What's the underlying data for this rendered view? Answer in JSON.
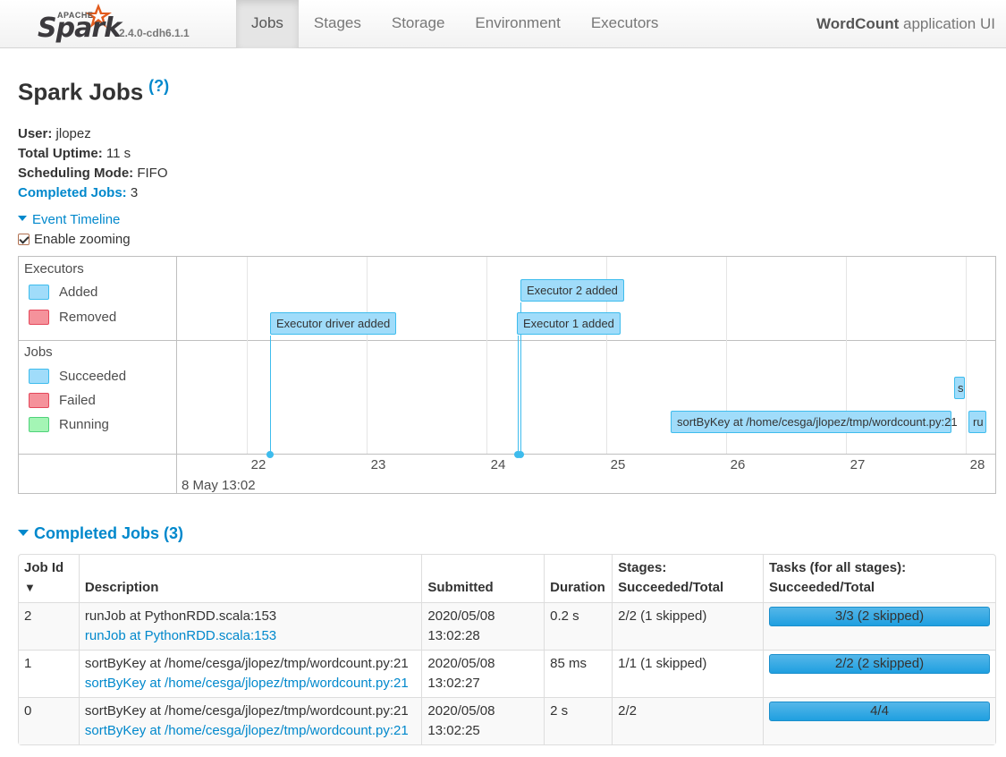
{
  "navbar": {
    "brand_word": "Spark",
    "brand_super": "APACHE",
    "version": "2.4.0-cdh6.1.1",
    "tabs": [
      {
        "label": "Jobs",
        "active": true
      },
      {
        "label": "Stages",
        "active": false
      },
      {
        "label": "Storage",
        "active": false
      },
      {
        "label": "Environment",
        "active": false
      },
      {
        "label": "Executors",
        "active": false
      }
    ],
    "app_name": "WordCount",
    "app_suffix": "application UI"
  },
  "page": {
    "title": "Spark Jobs",
    "help": "(?)"
  },
  "summary": {
    "user_label": "User:",
    "user": "jlopez",
    "uptime_label": "Total Uptime:",
    "uptime": "11 s",
    "mode_label": "Scheduling Mode:",
    "mode": "FIFO",
    "completed_label": "Completed Jobs:",
    "completed": "3"
  },
  "timeline": {
    "toggle": "Event Timeline",
    "zoom_label": "Enable zooming",
    "zoom_enabled": true,
    "executors_title": "Executors",
    "executor_legend": [
      "Added",
      "Removed"
    ],
    "jobs_title": "Jobs",
    "job_legend": [
      "Succeeded",
      "Failed",
      "Running"
    ],
    "ticks": [
      "22",
      "23",
      "24",
      "25",
      "26",
      "27",
      "28"
    ],
    "major_label": "8 May 13:02",
    "executor_events": [
      {
        "label": "Executor driver added"
      },
      {
        "label": "Executor 2 added"
      },
      {
        "label": "Executor 1 added"
      }
    ],
    "job_events": [
      {
        "label": "sortByKey at /home/cesga/jlopez/tmp/wordcount.py:21"
      },
      {
        "label": "s"
      },
      {
        "label": "ru"
      }
    ],
    "colors": {
      "added": "#a0dcfa",
      "removed": "#f5929b",
      "running": "#a4f5b5"
    }
  },
  "completed_jobs": {
    "toggle": "Completed Jobs (3)",
    "headers": {
      "job_id": "Job Id",
      "sort_arrow": "▼",
      "description": "Description",
      "submitted": "Submitted",
      "duration": "Duration",
      "stages_1": "Stages:",
      "stages_2": "Succeeded/Total",
      "tasks_1": "Tasks (for all stages):",
      "tasks_2": "Succeeded/Total"
    },
    "rows": [
      {
        "id": "2",
        "desc": "runJob at PythonRDD.scala:153",
        "link": "runJob at PythonRDD.scala:153",
        "date": "2020/05/08",
        "time": "13:02:28",
        "duration": "0.2 s",
        "stages": "2/2 (1 skipped)",
        "tasks": "3/3 (2 skipped)",
        "progress": 1.0
      },
      {
        "id": "1",
        "desc": "sortByKey at /home/cesga/jlopez/tmp/wordcount.py:21",
        "link": "sortByKey at /home/cesga/jlopez/tmp/wordcount.py:21",
        "date": "2020/05/08",
        "time": "13:02:27",
        "duration": "85 ms",
        "stages": "1/1 (1 skipped)",
        "tasks": "2/2 (2 skipped)",
        "progress": 1.0
      },
      {
        "id": "0",
        "desc": "sortByKey at /home/cesga/jlopez/tmp/wordcount.py:21",
        "link": "sortByKey at /home/cesga/jlopez/tmp/wordcount.py:21",
        "date": "2020/05/08",
        "time": "13:02:25",
        "duration": "2 s",
        "stages": "2/2",
        "tasks": "4/4",
        "progress": 1.0
      }
    ]
  }
}
